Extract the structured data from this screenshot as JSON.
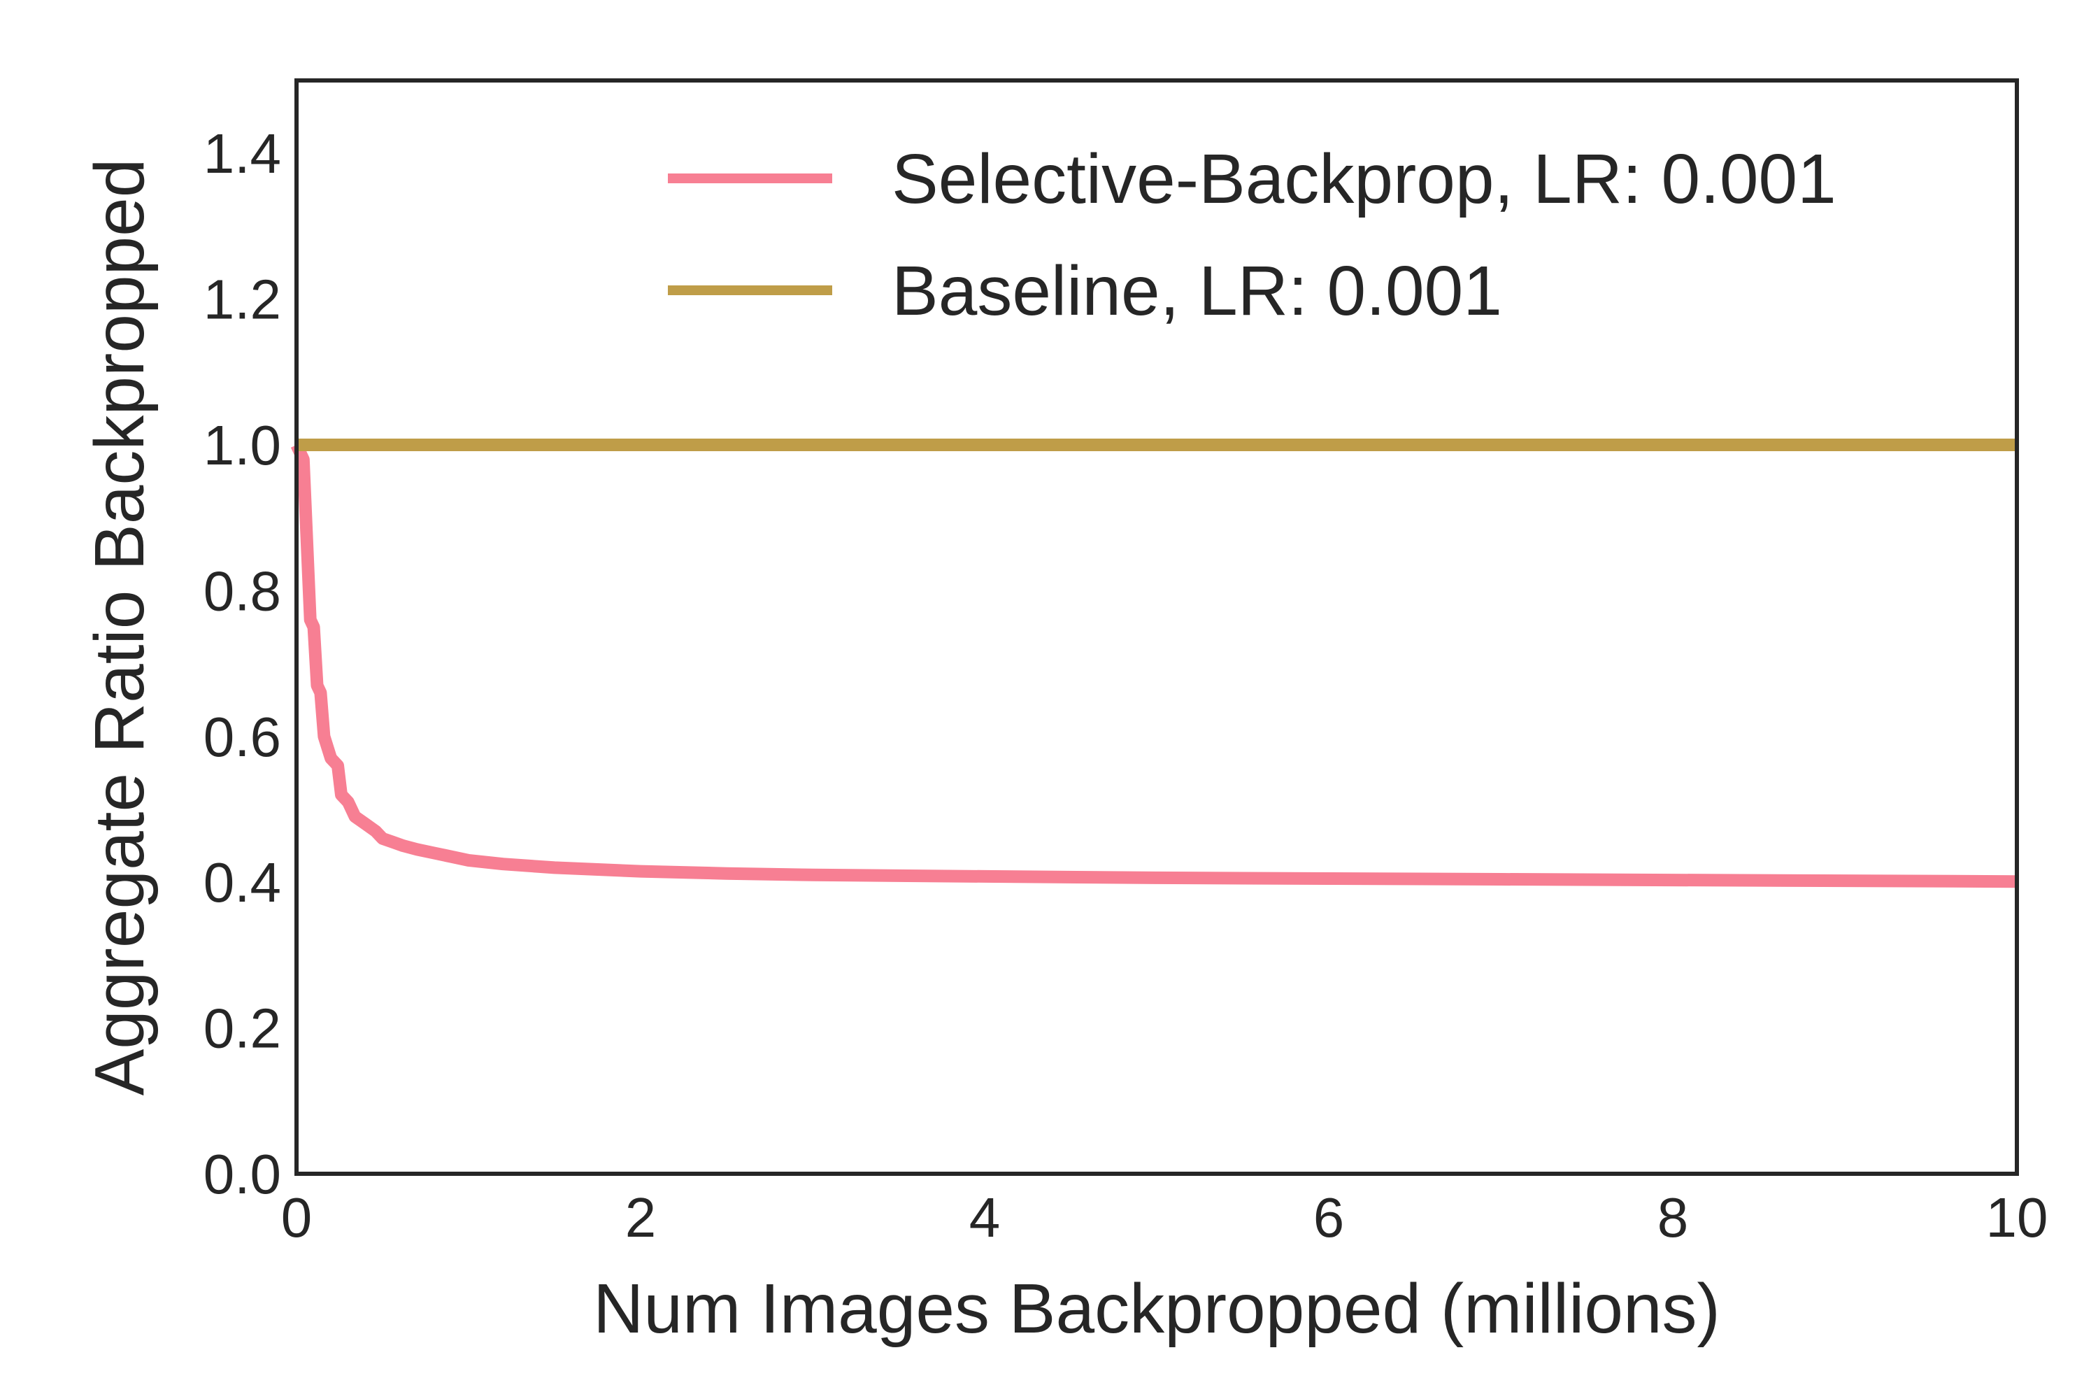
{
  "chart_data": {
    "type": "line",
    "title": "",
    "xlabel": "Num Images Backpropped (millions)",
    "ylabel": "Aggregate Ratio Backpropped",
    "xlim": [
      0,
      10
    ],
    "ylim": [
      0,
      1.5
    ],
    "xticks": [
      0,
      2,
      4,
      6,
      8,
      10
    ],
    "xtick_labels": [
      "0",
      "2",
      "4",
      "6",
      "8",
      "10"
    ],
    "yticks": [
      0.0,
      0.2,
      0.4,
      0.6,
      0.8,
      1.0,
      1.2,
      1.4
    ],
    "ytick_labels": [
      "0.0",
      "0.2",
      "0.4",
      "0.6",
      "0.8",
      "1.0",
      "1.2",
      "1.4"
    ],
    "grid": false,
    "legend_position": "top-right",
    "series": [
      {
        "name": "Selective-Backprop, LR: 0.001",
        "color": "#f77f93",
        "x": [
          0.0,
          0.04,
          0.08,
          0.1,
          0.12,
          0.14,
          0.16,
          0.2,
          0.24,
          0.26,
          0.3,
          0.34,
          0.4,
          0.46,
          0.5,
          0.56,
          0.62,
          0.7,
          0.8,
          0.9,
          1.0,
          1.2,
          1.5,
          2.0,
          2.5,
          3.0,
          4.0,
          5.0,
          6.0,
          7.0,
          8.0,
          9.0,
          10.0
        ],
        "y": [
          1.0,
          0.98,
          0.76,
          0.75,
          0.67,
          0.66,
          0.6,
          0.57,
          0.56,
          0.52,
          0.51,
          0.49,
          0.48,
          0.47,
          0.46,
          0.455,
          0.45,
          0.445,
          0.44,
          0.435,
          0.43,
          0.425,
          0.42,
          0.415,
          0.412,
          0.41,
          0.408,
          0.406,
          0.405,
          0.404,
          0.403,
          0.402,
          0.401
        ]
      },
      {
        "name": "Baseline, LR: 0.001",
        "color": "#bf9d48",
        "x": [
          0,
          10
        ],
        "y": [
          1.0,
          1.0
        ]
      }
    ]
  }
}
